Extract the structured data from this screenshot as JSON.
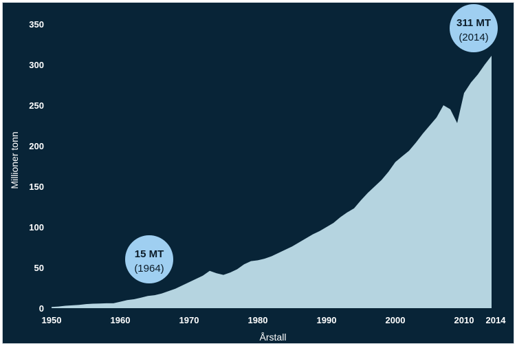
{
  "chart_data": {
    "type": "area",
    "xlabel": "Årstall",
    "ylabel": "Millioner tonn",
    "xlim": [
      1950,
      2015
    ],
    "ylim": [
      0,
      350
    ],
    "x_ticks": [
      "1950",
      "1960",
      "1970",
      "1980",
      "1990",
      "2000",
      "2010",
      "2014"
    ],
    "y_ticks": [
      "0",
      "50",
      "100",
      "150",
      "200",
      "250",
      "300",
      "350"
    ],
    "grid": false,
    "colors": {
      "background": "#082437",
      "area": "#b5d4e0",
      "bubble": "#9fcff1",
      "text": "#ffffff"
    },
    "series": [
      {
        "x": [
          1950,
          1951,
          1952,
          1953,
          1954,
          1955,
          1956,
          1957,
          1958,
          1959,
          1960,
          1961,
          1962,
          1963,
          1964,
          1965,
          1966,
          1967,
          1968,
          1969,
          1970,
          1971,
          1972,
          1973,
          1974,
          1975,
          1976,
          1977,
          1978,
          1979,
          1980,
          1981,
          1982,
          1983,
          1984,
          1985,
          1986,
          1987,
          1988,
          1989,
          1990,
          1991,
          1992,
          1993,
          1994,
          1995,
          1996,
          1997,
          1998,
          1999,
          2000,
          2001,
          2002,
          2003,
          2004,
          2005,
          2006,
          2007,
          2008,
          2009,
          2010,
          2011,
          2012,
          2013,
          2014
        ],
        "values": [
          1.5,
          2,
          3,
          3.5,
          4,
          5,
          5.5,
          5.8,
          6,
          6,
          8,
          10,
          11,
          13,
          15,
          16,
          18,
          21,
          24,
          28,
          32,
          36,
          40,
          46,
          43,
          41,
          44,
          48,
          54,
          58,
          59,
          61,
          64,
          68,
          72,
          76,
          81,
          86,
          91,
          95,
          100,
          105,
          112,
          118,
          123,
          133,
          142,
          150,
          158,
          168,
          180,
          187,
          194,
          204,
          215,
          225,
          235,
          250,
          245,
          228,
          265,
          278,
          288,
          300,
          311
        ]
      }
    ],
    "annotations": [
      {
        "value": "15 MT",
        "year": "(1964)",
        "x": 1964,
        "y": 15
      },
      {
        "value": "311 MT",
        "year": "(2014)",
        "x": 2014,
        "y": 311
      }
    ]
  }
}
